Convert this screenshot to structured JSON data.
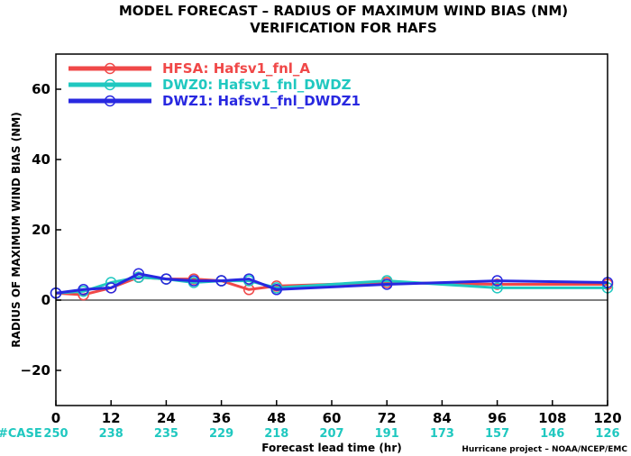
{
  "chart_data": {
    "type": "line",
    "title": "MODEL FORECAST – RADIUS OF MAXIMUM WIND BIAS (NM)",
    "subtitle": "VERIFICATION FOR HAFS",
    "xlabel": "Forecast lead time (hr)",
    "ylabel": "RADIUS OF MAXIMUM WIND BIAS (NM)",
    "xlim": [
      0,
      120
    ],
    "ylim": [
      -30,
      70
    ],
    "xticks": [
      0,
      12,
      24,
      36,
      48,
      60,
      72,
      84,
      96,
      108,
      120
    ],
    "yticks": [
      -20,
      0,
      20,
      40,
      60
    ],
    "zero_line": true,
    "legend_position": "top-left",
    "case_label": "#CASE",
    "case_counts": [
      {
        "x": 0,
        "n": "250"
      },
      {
        "x": 12,
        "n": "238"
      },
      {
        "x": 24,
        "n": "235"
      },
      {
        "x": 36,
        "n": "229"
      },
      {
        "x": 48,
        "n": "218"
      },
      {
        "x": 60,
        "n": "207"
      },
      {
        "x": 72,
        "n": "191"
      },
      {
        "x": 84,
        "n": "173"
      },
      {
        "x": 96,
        "n": "157"
      },
      {
        "x": 108,
        "n": "146"
      },
      {
        "x": 120,
        "n": "126"
      }
    ],
    "case_color": "#20c8c0",
    "credit": "Hurricane project – NOAA/NCEP/EMC",
    "series": [
      {
        "name": "HFSA: Hafsv1_fnl_A",
        "color": "#f04848",
        "x": [
          0,
          6,
          12,
          18,
          24,
          30,
          36,
          42,
          48,
          72,
          96,
          120
        ],
        "y": [
          2.0,
          1.5,
          3.5,
          6.5,
          6.0,
          6.0,
          5.5,
          3.0,
          4.0,
          5.0,
          4.5,
          4.5
        ]
      },
      {
        "name": "DWZ0: Hafsv1_fnl_DWDZ",
        "color": "#20c8c0",
        "x": [
          0,
          6,
          12,
          18,
          24,
          30,
          36,
          42,
          48,
          72,
          96,
          120
        ],
        "y": [
          2.0,
          2.5,
          5.0,
          6.5,
          6.0,
          5.0,
          5.5,
          5.5,
          3.5,
          5.5,
          3.5,
          3.5
        ]
      },
      {
        "name": "DWZ1: Hafsv1_fnl_DWDZ1",
        "color": "#2828e0",
        "x": [
          0,
          6,
          12,
          18,
          24,
          30,
          36,
          42,
          48,
          72,
          96,
          120
        ],
        "y": [
          2.0,
          3.0,
          3.5,
          7.5,
          6.0,
          5.5,
          5.5,
          6.0,
          3.0,
          4.5,
          5.5,
          5.0
        ]
      }
    ]
  }
}
